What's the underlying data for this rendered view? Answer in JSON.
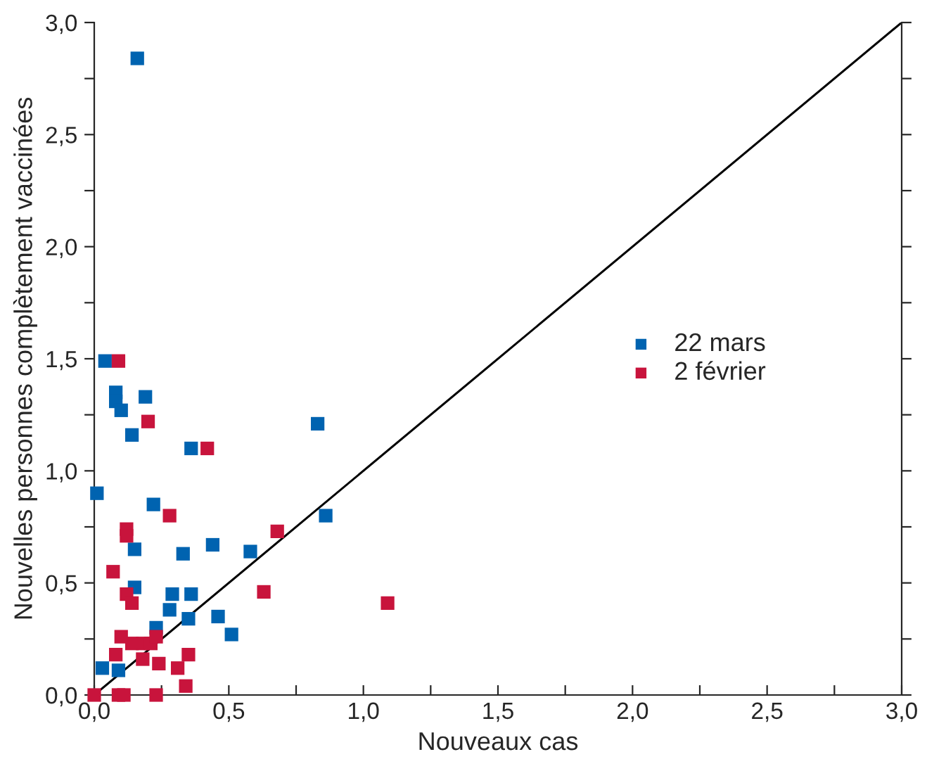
{
  "chart_data": {
    "type": "scatter",
    "xlabel": "Nouveaux cas",
    "ylabel": "Nouvelles personnes complètement vaccinées",
    "xlim": [
      0,
      3
    ],
    "ylim": [
      0,
      3
    ],
    "xticks": [
      {
        "value": 0,
        "label": "0,0"
      },
      {
        "value": 0.25,
        "label": null
      },
      {
        "value": 0.5,
        "label": "0,5"
      },
      {
        "value": 0.75,
        "label": null
      },
      {
        "value": 1,
        "label": "1,0"
      },
      {
        "value": 1.25,
        "label": null
      },
      {
        "value": 1.5,
        "label": "1,5"
      },
      {
        "value": 1.75,
        "label": null
      },
      {
        "value": 2,
        "label": "2,0"
      },
      {
        "value": 2.25,
        "label": null
      },
      {
        "value": 2.5,
        "label": "2,5"
      },
      {
        "value": 2.75,
        "label": null
      },
      {
        "value": 3,
        "label": "3,0"
      }
    ],
    "yticks": [
      {
        "value": 0,
        "label": "0,0"
      },
      {
        "value": 0.25,
        "label": null
      },
      {
        "value": 0.5,
        "label": "0,5"
      },
      {
        "value": 0.75,
        "label": null
      },
      {
        "value": 1,
        "label": "1,0"
      },
      {
        "value": 1.25,
        "label": null
      },
      {
        "value": 1.5,
        "label": "1,5"
      },
      {
        "value": 1.75,
        "label": null
      },
      {
        "value": 2,
        "label": "2,0"
      },
      {
        "value": 2.25,
        "label": null
      },
      {
        "value": 2.5,
        "label": "2,5"
      },
      {
        "value": 2.75,
        "label": null
      },
      {
        "value": 3,
        "label": "3,0"
      }
    ],
    "marker": "square",
    "legend": "right",
    "grid": false,
    "series": [
      {
        "name": "22 mars",
        "color": "#0063b0",
        "x": [
          0.16,
          0.04,
          0.08,
          0.08,
          0.1,
          0.19,
          0.14,
          0.36,
          0.83,
          0.01,
          0.22,
          0.86,
          0.15,
          0.33,
          0.44,
          0.58,
          0.15,
          0.29,
          0.36,
          0.28,
          0.35,
          0.46,
          0.51,
          0.23,
          0.03,
          0.09
        ],
        "values": [
          2.84,
          1.49,
          1.35,
          1.31,
          1.27,
          1.33,
          1.16,
          1.1,
          1.21,
          0.9,
          0.85,
          0.8,
          0.65,
          0.63,
          0.67,
          0.64,
          0.48,
          0.45,
          0.45,
          0.38,
          0.34,
          0.35,
          0.27,
          0.3,
          0.12,
          0.11
        ]
      },
      {
        "name": "2 février",
        "color": "#c8143c",
        "x": [
          0.09,
          0.2,
          0.42,
          0.28,
          0.12,
          0.12,
          0.68,
          0.07,
          0.63,
          1.09,
          0.12,
          0.14,
          0.1,
          0.08,
          0.14,
          0.18,
          0.21,
          0.23,
          0.18,
          0.24,
          0.31,
          0.35,
          0.34,
          0.0,
          0.09,
          0.11,
          0.23
        ],
        "values": [
          1.49,
          1.22,
          1.1,
          0.8,
          0.74,
          0.71,
          0.73,
          0.55,
          0.46,
          0.41,
          0.45,
          0.41,
          0.26,
          0.18,
          0.23,
          0.23,
          0.23,
          0.26,
          0.16,
          0.14,
          0.12,
          0.18,
          0.04,
          0.0,
          0.0,
          0.0,
          0.0
        ]
      },
      {
        "type": "line",
        "color": "#000000",
        "x": [
          0,
          3
        ],
        "values": [
          0,
          3
        ],
        "marker": "none",
        "line_style": "solid"
      }
    ]
  }
}
